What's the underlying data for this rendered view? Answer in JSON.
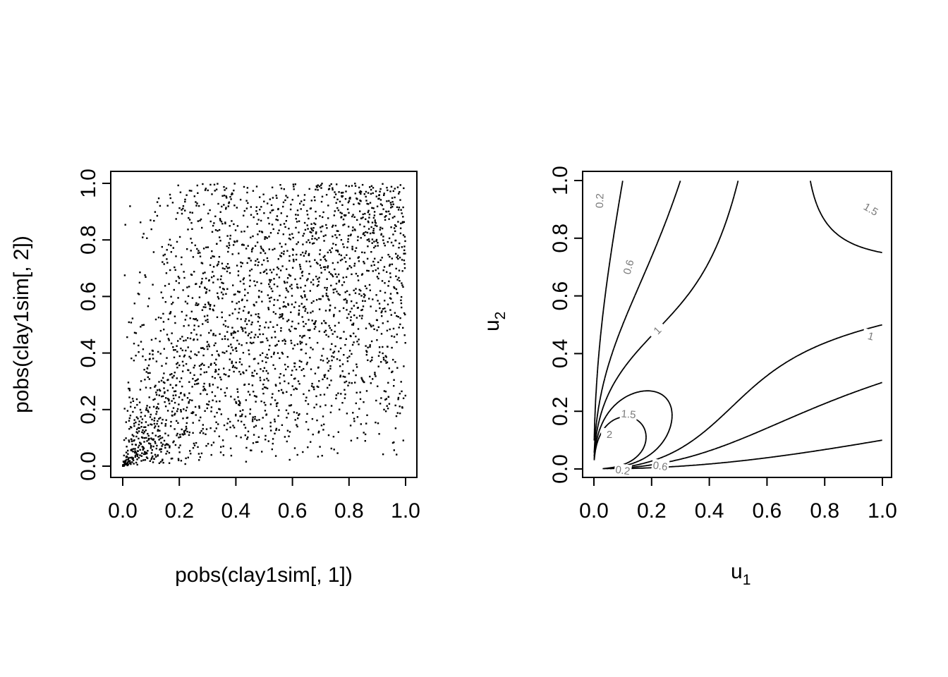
{
  "chart_data": [
    {
      "type": "scatter",
      "xlabel": "pobs(clay1sim[, 1])",
      "ylabel": "pobs(clay1sim[, 2])",
      "xlim": [
        0,
        1
      ],
      "ylim": [
        0,
        1
      ],
      "x_ticks": [
        "0.0",
        "0.2",
        "0.4",
        "0.6",
        "0.8",
        "1.0"
      ],
      "y_ticks": [
        "0.0",
        "0.2",
        "0.4",
        "0.6",
        "0.8",
        "1.0"
      ],
      "copula": "clayton",
      "theta": 1,
      "n_points": 2500,
      "marker": "small black square",
      "grid": false
    },
    {
      "type": "contour",
      "xlabel": "u",
      "xlabel_sub": "1",
      "ylabel": "u",
      "ylabel_sub": "2",
      "xlim": [
        0,
        1
      ],
      "ylim": [
        0,
        1
      ],
      "x_ticks": [
        "0.0",
        "0.2",
        "0.4",
        "0.6",
        "0.8",
        "1.0"
      ],
      "y_ticks": [
        "0.0",
        "0.2",
        "0.4",
        "0.6",
        "0.8",
        "1.0"
      ],
      "levels": [
        0.2,
        0.6,
        1,
        1.5,
        2
      ],
      "level_labels": [
        {
          "text": "0.2",
          "u": 0.02,
          "v": 0.93,
          "angle": -88
        },
        {
          "text": "0.6",
          "u": 0.12,
          "v": 0.7,
          "angle": -75
        },
        {
          "text": "1",
          "u": 0.22,
          "v": 0.48,
          "angle": -45
        },
        {
          "text": "1.5",
          "u": 0.96,
          "v": 0.9,
          "angle": 30
        },
        {
          "text": "1",
          "u": 0.96,
          "v": 0.46,
          "angle": 15
        },
        {
          "text": "1.5",
          "u": 0.12,
          "v": 0.19,
          "angle": 5
        },
        {
          "text": "2",
          "u": 0.054,
          "v": 0.12,
          "angle": 0
        },
        {
          "text": "0.6",
          "u": 0.23,
          "v": 0.01,
          "angle": 8
        },
        {
          "text": "0.2",
          "u": 0.1,
          "v": -0.005,
          "angle": 8
        }
      ],
      "grid": false
    }
  ]
}
